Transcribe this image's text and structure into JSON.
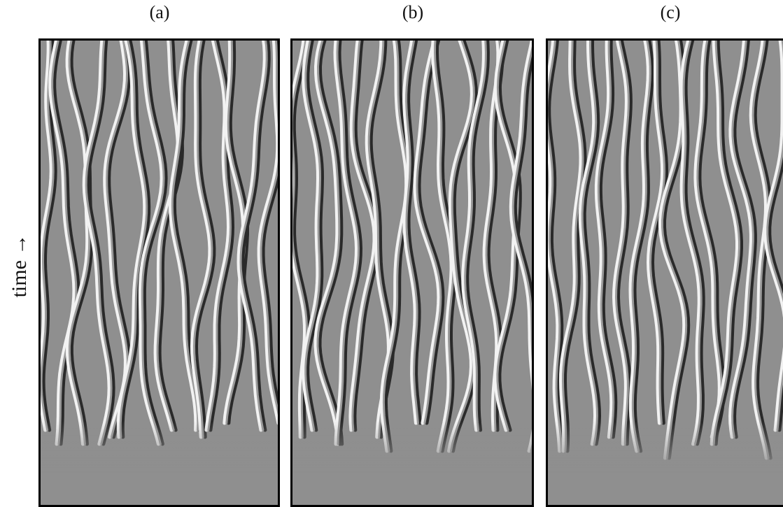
{
  "figure": {
    "panels": [
      {
        "label": "(a)"
      },
      {
        "label": "(b)"
      },
      {
        "label": "(c)"
      }
    ],
    "axis_label": "time →"
  }
}
